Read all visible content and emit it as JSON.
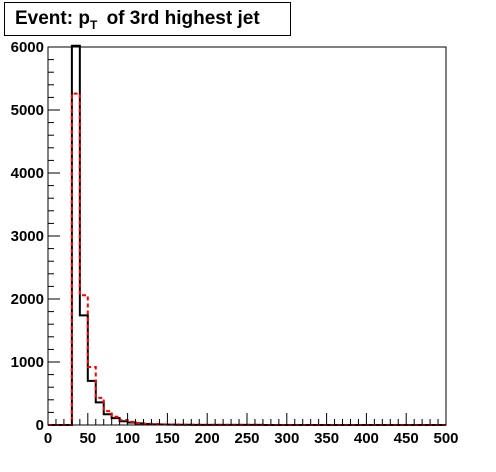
{
  "title": {
    "prefix": "Event: p",
    "subscript": "T",
    "suffix": " of 3rd highest jet"
  },
  "chart_data": {
    "type": "histogram",
    "xlim": [
      0,
      500
    ],
    "ylim": [
      0,
      6000
    ],
    "bin_width": 10,
    "x_ticks": [
      0,
      50,
      100,
      150,
      200,
      250,
      300,
      350,
      400,
      450,
      500
    ],
    "y_ticks": [
      0,
      1000,
      2000,
      3000,
      4000,
      5000,
      6000
    ],
    "grid": false,
    "legend": "none",
    "series": [
      {
        "color": "#000000",
        "style": "solid",
        "values": [
          0,
          0,
          0,
          6020,
          1740,
          700,
          360,
          170,
          110,
          60,
          40,
          25,
          15,
          10,
          7,
          5,
          4,
          3,
          2,
          2,
          1,
          1,
          1,
          1,
          1,
          1,
          1,
          0,
          0,
          0,
          0,
          0,
          0,
          0,
          0,
          0,
          0,
          0,
          0,
          0,
          0,
          0,
          0,
          0,
          0,
          0,
          0,
          0,
          0,
          0
        ]
      },
      {
        "color": "#ff0000",
        "style": "dashed",
        "values": [
          0,
          0,
          0,
          5260,
          2060,
          920,
          430,
          220,
          130,
          80,
          50,
          30,
          20,
          15,
          10,
          7,
          5,
          4,
          3,
          2,
          2,
          1,
          1,
          1,
          1,
          1,
          1,
          0,
          0,
          0,
          0,
          0,
          0,
          0,
          0,
          0,
          0,
          0,
          0,
          0,
          0,
          0,
          0,
          0,
          0,
          0,
          0,
          0,
          0,
          0
        ]
      }
    ]
  }
}
